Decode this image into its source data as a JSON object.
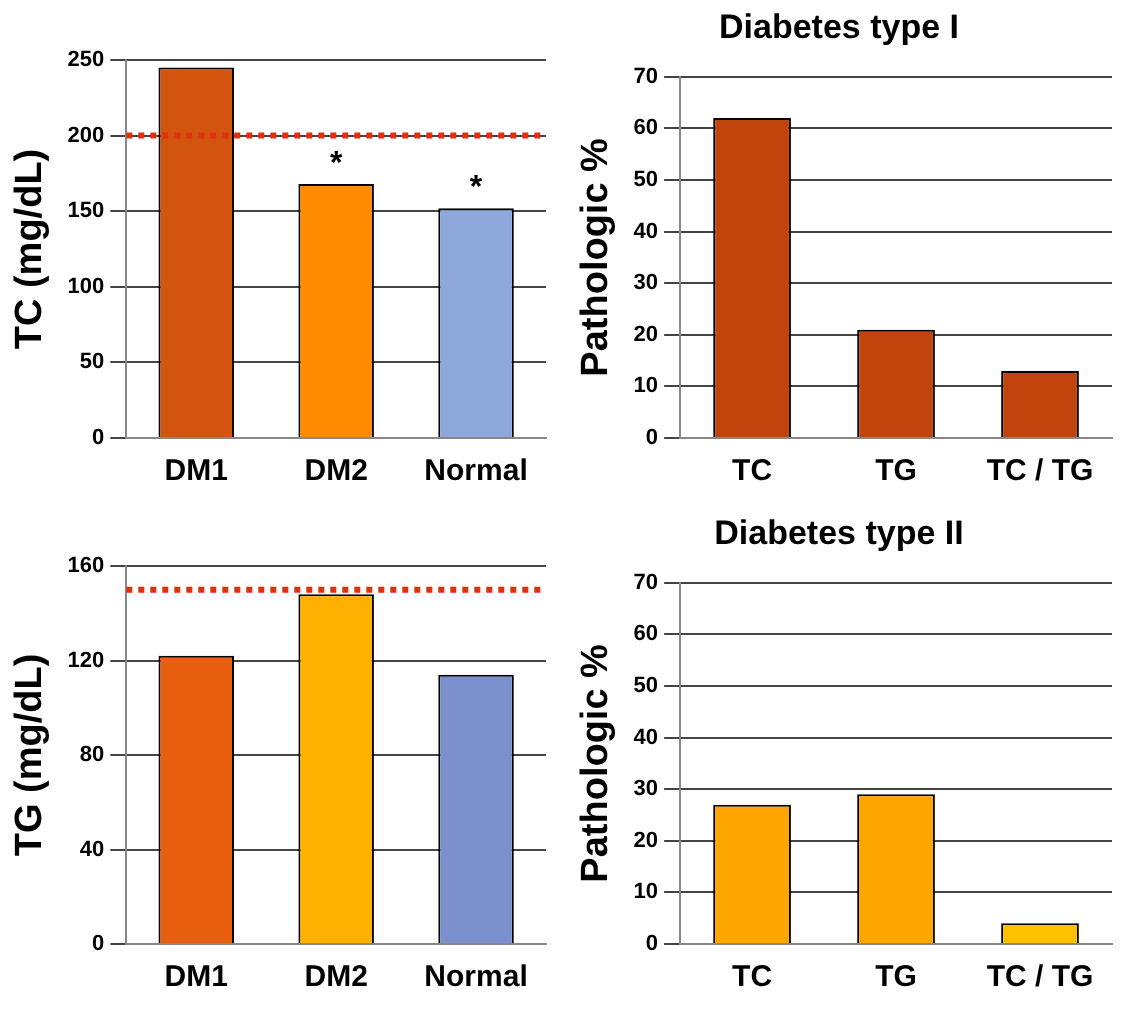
{
  "chart_data": [
    {
      "type": "bar",
      "ylabel": "TC (mg/dL)",
      "categories": [
        "DM1",
        "DM2",
        "Normal"
      ],
      "values": [
        245,
        168,
        152
      ],
      "colors": [
        "#d2540f",
        "#ff8c00",
        "#8fa8dc"
      ],
      "ylim": [
        0,
        250
      ],
      "yticks": [
        0,
        50,
        100,
        150,
        200,
        250
      ],
      "grid": "y",
      "ref_lines": [
        {
          "axis": "y",
          "value": 200,
          "color": "#e03010",
          "line_style": "dotted"
        }
      ],
      "annotations": [
        {
          "text": "*",
          "x": "DM2",
          "y": 168
        },
        {
          "text": "*",
          "x": "Normal",
          "y": 152
        }
      ]
    },
    {
      "type": "bar",
      "title": "Diabetes type I",
      "ylabel": "Pathologic %",
      "categories": [
        "TC",
        "TG",
        "TC / TG"
      ],
      "values": [
        62,
        21,
        13
      ],
      "colors": [
        "#c0440c",
        "#c0440c",
        "#c0440c"
      ],
      "ylim": [
        0,
        70
      ],
      "yticks": [
        0,
        10,
        20,
        30,
        40,
        50,
        60,
        70
      ],
      "grid": "y"
    },
    {
      "type": "bar",
      "ylabel": "TG (mg/dL)",
      "categories": [
        "DM1",
        "DM2",
        "Normal"
      ],
      "values": [
        122,
        148,
        114
      ],
      "colors": [
        "#e8600f",
        "#ffb000",
        "#7a8fcc"
      ],
      "ylim": [
        0,
        160
      ],
      "yticks": [
        0,
        40,
        80,
        120,
        160
      ],
      "grid": "y",
      "ref_lines": [
        {
          "axis": "y",
          "value": 150,
          "color": "#e03010",
          "line_style": "dotted"
        }
      ]
    },
    {
      "type": "bar",
      "title": "Diabetes type II",
      "ylabel": "Pathologic %",
      "categories": [
        "TC",
        "TG",
        "TC / TG"
      ],
      "values": [
        27,
        29,
        4
      ],
      "colors": [
        "#ffa500",
        "#ffa500",
        "#ffc000"
      ],
      "ylim": [
        0,
        70
      ],
      "yticks": [
        0,
        10,
        20,
        30,
        40,
        50,
        60,
        70
      ],
      "grid": "y"
    }
  ]
}
